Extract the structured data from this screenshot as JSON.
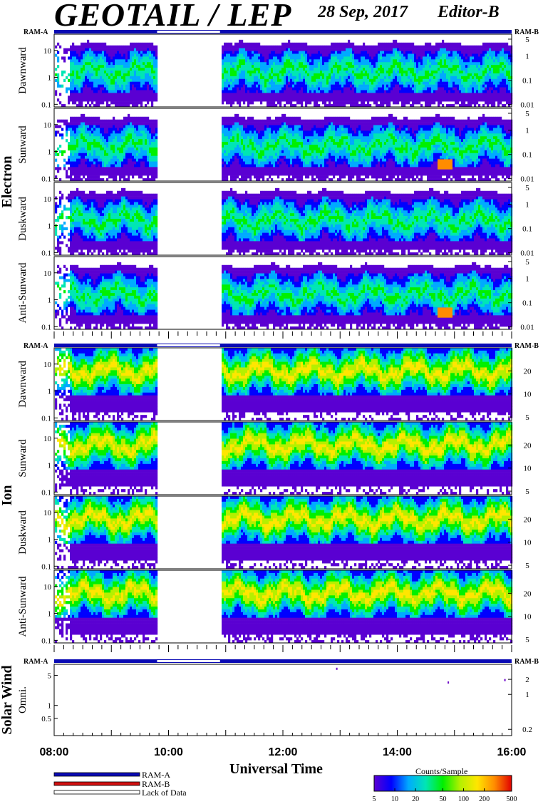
{
  "header": {
    "title": "GEOTAIL / LEP",
    "date": "28 Sep, 2017",
    "editor": "Editor-B"
  },
  "ram_labels": {
    "left": "RAM-A",
    "right": "RAM-B"
  },
  "group_labels": {
    "electron": "Electron",
    "ion": "Ion",
    "solar": "Solar Wind"
  },
  "legend": {
    "items": [
      {
        "label": "RAM-A",
        "color": "#0a0ab4"
      },
      {
        "label": "RAM-B",
        "color": "#d01010"
      },
      {
        "label": "Lack of Data",
        "color": "#ffffff"
      }
    ]
  },
  "colorbar": {
    "title": "Counts/Sample",
    "ticks": [
      "5",
      "10",
      "20",
      "50",
      "100",
      "200",
      "500"
    ],
    "values": [
      5,
      10,
      20,
      50,
      100,
      200,
      500
    ],
    "colors": [
      "#5a00d2",
      "#0000ff",
      "#00aaff",
      "#00e6b4",
      "#00f000",
      "#b4f000",
      "#ffe600",
      "#ff8c00",
      "#e10000"
    ]
  },
  "chart_data": {
    "type": "heatmap",
    "xlabel": "Universal Time",
    "x_ticks": [
      "08:00",
      "10:00",
      "12:00",
      "14:00",
      "16:00"
    ],
    "x_tick_hours": [
      8,
      10,
      12,
      14,
      16
    ],
    "xlim_hours": [
      8,
      16
    ],
    "data_gap_hours": [
      9.8,
      10.9
    ],
    "panels": [
      {
        "group": "Electron",
        "label": "Dawnward",
        "left_ticks": [
          "10",
          "1",
          "0.1"
        ],
        "left_vals": [
          10,
          1,
          0.1
        ],
        "left_lim": [
          0.08,
          40
        ],
        "right_ticks": [
          "5",
          "1",
          "0.1",
          "0.01"
        ],
        "right_vals": [
          5,
          1,
          0.1,
          0.01
        ],
        "right_lim": [
          0.008,
          8
        ],
        "palette": "electron"
      },
      {
        "group": "Electron",
        "label": "Sunward",
        "left_ticks": [
          "10",
          "1",
          "0.1"
        ],
        "left_vals": [
          10,
          1,
          0.1
        ],
        "left_lim": [
          0.08,
          40
        ],
        "right_ticks": [
          "5",
          "1",
          "0.1",
          "0.01"
        ],
        "right_vals": [
          5,
          1,
          0.1,
          0.01
        ],
        "right_lim": [
          0.008,
          8
        ],
        "palette": "electron",
        "hot_spot": [
          14.7,
          14.95
        ]
      },
      {
        "group": "Electron",
        "label": "Duskward",
        "left_ticks": [
          "10",
          "1",
          "0.1"
        ],
        "left_vals": [
          10,
          1,
          0.1
        ],
        "left_lim": [
          0.08,
          40
        ],
        "right_ticks": [
          "5",
          "1",
          "0.1",
          "0.01"
        ],
        "right_vals": [
          5,
          1,
          0.1,
          0.01
        ],
        "right_lim": [
          0.008,
          8
        ],
        "palette": "electron"
      },
      {
        "group": "Electron",
        "label": "Anti-Sunward",
        "left_ticks": [
          "10",
          "1",
          "0.1"
        ],
        "left_vals": [
          10,
          1,
          0.1
        ],
        "left_lim": [
          0.08,
          40
        ],
        "right_ticks": [
          "5",
          "1",
          "0.1",
          "0.01"
        ],
        "right_vals": [
          5,
          1,
          0.1,
          0.01
        ],
        "right_lim": [
          0.008,
          8
        ],
        "palette": "electron",
        "hot_spot": [
          14.7,
          14.95
        ]
      },
      {
        "group": "Ion",
        "label": "Dawnward",
        "left_ticks": [
          "10",
          "1",
          "0.1"
        ],
        "left_vals": [
          10,
          1,
          0.1
        ],
        "left_lim": [
          0.08,
          40
        ],
        "right_ticks": [
          "20",
          "10",
          "5"
        ],
        "right_vals": [
          20,
          10,
          5
        ],
        "right_lim": [
          4.5,
          40
        ],
        "palette": "ion"
      },
      {
        "group": "Ion",
        "label": "Sunward",
        "left_ticks": [
          "10",
          "1",
          "0.1"
        ],
        "left_vals": [
          10,
          1,
          0.1
        ],
        "left_lim": [
          0.08,
          40
        ],
        "right_ticks": [
          "20",
          "10",
          "5"
        ],
        "right_vals": [
          20,
          10,
          5
        ],
        "right_lim": [
          4.5,
          40
        ],
        "palette": "ion"
      },
      {
        "group": "Ion",
        "label": "Duskward",
        "left_ticks": [
          "10",
          "1",
          "0.1"
        ],
        "left_vals": [
          10,
          1,
          0.1
        ],
        "left_lim": [
          0.08,
          40
        ],
        "right_ticks": [
          "20",
          "10",
          "5"
        ],
        "right_vals": [
          20,
          10,
          5
        ],
        "right_lim": [
          4.5,
          40
        ],
        "palette": "ion"
      },
      {
        "group": "Ion",
        "label": "Anti-Sunward",
        "left_ticks": [
          "10",
          "1",
          "0.1"
        ],
        "left_vals": [
          10,
          1,
          0.1
        ],
        "left_lim": [
          0.08,
          40
        ],
        "right_ticks": [
          "20",
          "10",
          "5"
        ],
        "right_vals": [
          20,
          10,
          5
        ],
        "right_lim": [
          4.5,
          40
        ],
        "palette": "ion"
      },
      {
        "group": "Solar Wind",
        "label": "Omni.",
        "left_ticks": [
          "5",
          "1",
          "0.5"
        ],
        "left_vals": [
          5,
          1,
          0.5
        ],
        "left_lim": [
          0.2,
          9
        ],
        "right_ticks": [
          "2",
          "1",
          "0.2"
        ],
        "right_vals": [
          2,
          1,
          0.2
        ],
        "right_lim": [
          0.15,
          4
        ],
        "palette": "solar",
        "dots": [
          [
            12.93,
            7.5
          ],
          [
            14.88,
            3.6
          ],
          [
            15.87,
            4.1
          ]
        ]
      }
    ]
  }
}
